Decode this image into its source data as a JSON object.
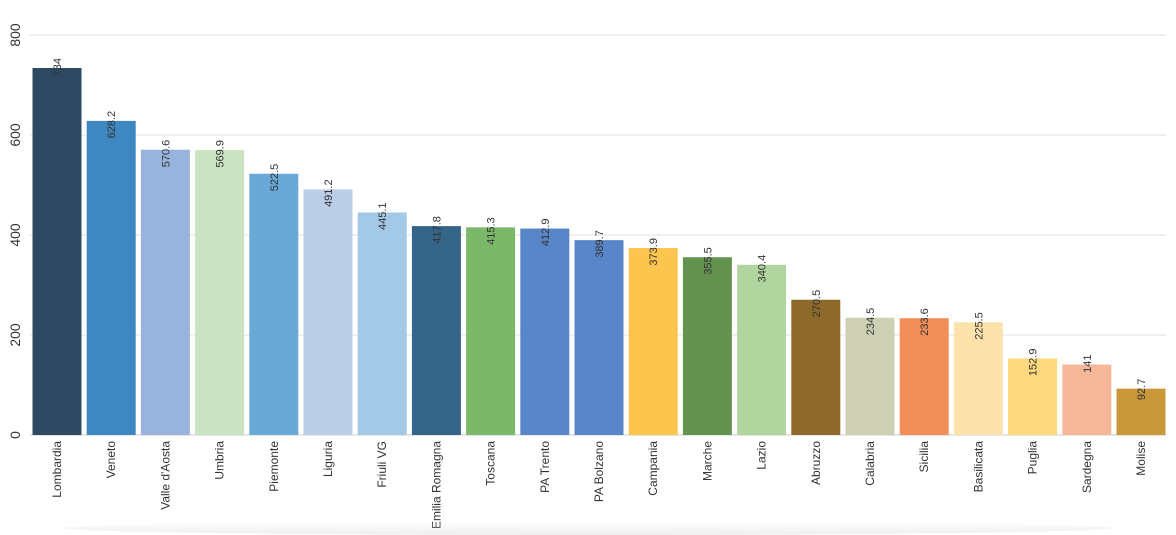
{
  "chart_data": {
    "type": "bar",
    "title": "",
    "xlabel": "",
    "ylabel": "",
    "ylim": [
      0,
      800
    ],
    "yticks": [
      0,
      200,
      400,
      600,
      800
    ],
    "grid": true,
    "categories": [
      "Lombardia",
      "Veneto",
      "Valle d'Aosta",
      "Umbria",
      "Piemonte",
      "Liguria",
      "Friuli VG",
      "Emilia Romagna",
      "Toscana",
      "PA Trento",
      "PA Bolzano",
      "Campania",
      "Marche",
      "Lazio",
      "Abruzzo",
      "Calabria",
      "Sicilia",
      "Basilicata",
      "Puglia",
      "Sardegna",
      "Molise"
    ],
    "values": [
      734,
      628.2,
      570.6,
      569.9,
      522.5,
      491.2,
      445.1,
      417.8,
      415.3,
      412.9,
      389.7,
      373.9,
      355.5,
      340.4,
      270.5,
      234.5,
      233.6,
      225.5,
      152.9,
      141,
      92.7
    ],
    "value_labels": [
      "734",
      "628.2",
      "570.6",
      "569.9",
      "522.5",
      "491.2",
      "445.1",
      "417.8",
      "415.3",
      "412.9",
      "389.7",
      "373.9",
      "355.5",
      "340.4",
      "270.5",
      "234.5",
      "233.6",
      "225.5",
      "152.9",
      "141",
      "92.7"
    ],
    "colors": [
      "#2e4a62",
      "#3f87c0",
      "#99b4dc",
      "#cbe3c2",
      "#6aa8d8",
      "#bccde8",
      "#a4c9e6",
      "#346487",
      "#7cb86a",
      "#5886c8",
      "#5886c8",
      "#fdc44e",
      "#64924f",
      "#b1d59f",
      "#8e6a2a",
      "#cdd0b3",
      "#f28e58",
      "#fde3ab",
      "#fed97e",
      "#f6b898",
      "#c8983a"
    ]
  }
}
